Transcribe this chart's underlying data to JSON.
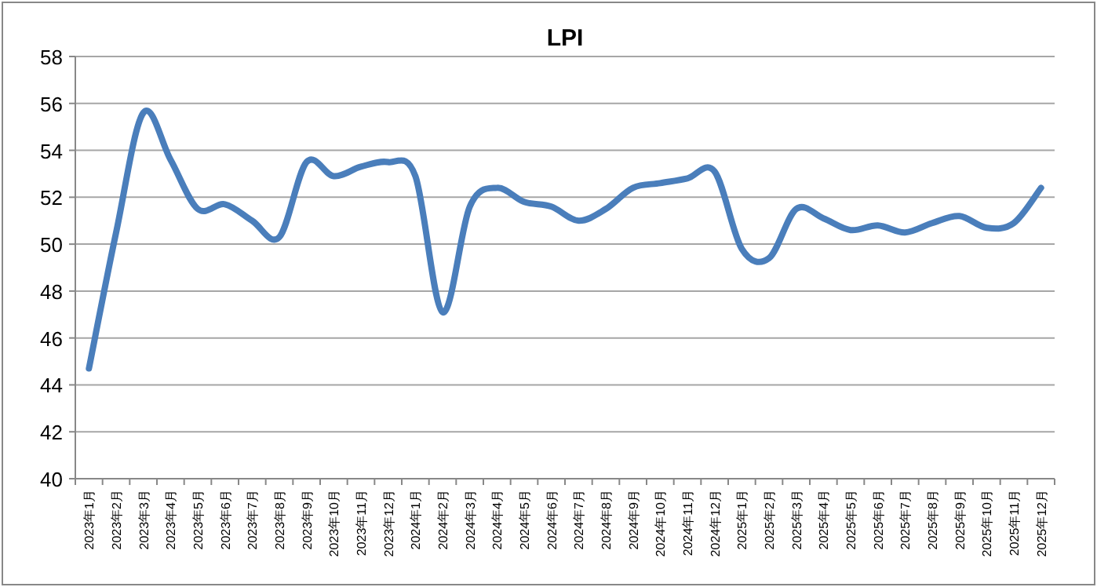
{
  "chart_data": {
    "type": "line",
    "title": "LPI",
    "categories": [
      "2023年1月",
      "2023年2月",
      "2023年3月",
      "2023年4月",
      "2023年5月",
      "2023年6月",
      "2023年7月",
      "2023年8月",
      "2023年9月",
      "2023年10月",
      "2023年11月",
      "2023年12月",
      "2024年1月",
      "2024年2月",
      "2024年3月",
      "2024年4月",
      "2024年5月",
      "2024年6月",
      "2024年7月",
      "2024年8月",
      "2024年9月",
      "2024年10月",
      "2024年11月",
      "2024年12月",
      "2025年1月",
      "2025年2月",
      "2025年3月",
      "2025年4月",
      "2025年5月",
      "2025年6月",
      "2025年7月",
      "2025年8月",
      "2025年9月",
      "2025年10月",
      "2025年11月",
      "2025年12月"
    ],
    "values": [
      44.7,
      50.5,
      55.6,
      53.6,
      51.5,
      51.7,
      51.0,
      50.3,
      53.5,
      52.9,
      53.3,
      53.5,
      52.9,
      47.1,
      51.6,
      52.4,
      51.8,
      51.6,
      51.0,
      51.5,
      52.4,
      52.6,
      52.8,
      53.1,
      49.8,
      49.4,
      51.5,
      51.1,
      50.6,
      50.8,
      50.5,
      50.9,
      51.2,
      50.7,
      50.9,
      52.4
    ],
    "color": "#4a7ebb",
    "ylim": [
      40,
      58
    ],
    "yticks": [
      40,
      42,
      44,
      46,
      48,
      50,
      52,
      54,
      56,
      58
    ],
    "grid": "y",
    "marker": "none",
    "line_style": "solid"
  }
}
